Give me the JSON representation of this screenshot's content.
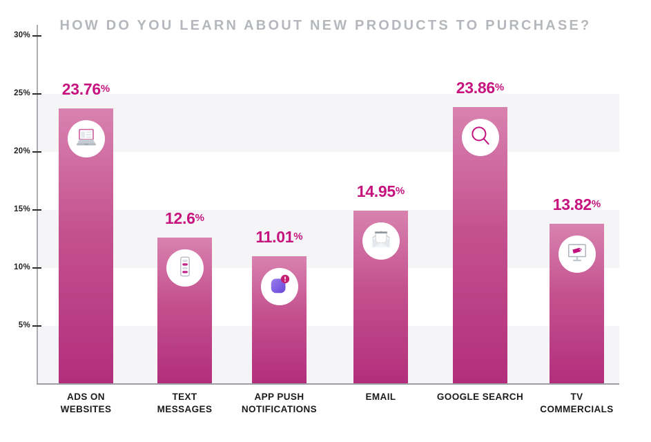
{
  "title": "HOW DO YOU LEARN ABOUT NEW PRODUCTS TO PURCHASE?",
  "colors": {
    "accent_magenta": "#c6137e",
    "bar_gradient_top": "#d882af",
    "bar_gradient_bottom": "#b22e7c",
    "grid_band": "#f5f5f8",
    "axis_line": "#9b9fa4",
    "title_text": "#b4b8bc",
    "category_text": "#1b1b1b",
    "app_badge": "#c51f72",
    "app_square_purple": "#7a57e0"
  },
  "chart_data": {
    "type": "bar",
    "title": "HOW DO YOU LEARN ABOUT NEW PRODUCTS TO PURCHASE?",
    "categories": [
      "ADS ON WEBSITES",
      "TEXT MESSAGES",
      "APP PUSH NOTIFICATIONS",
      "EMAIL",
      "GOOGLE SEARCH",
      "TV COMMERCIALS"
    ],
    "category_lines": [
      [
        "ADS ON",
        "WEBSITES"
      ],
      [
        "TEXT",
        "MESSAGES"
      ],
      [
        "APP PUSH",
        "NOTIFICATIONS"
      ],
      [
        "EMAIL"
      ],
      [
        "GOOGLE SEARCH"
      ],
      [
        "TV",
        "COMMERCIALS"
      ]
    ],
    "values": [
      23.76,
      12.6,
      11.01,
      14.95,
      23.86,
      13.82
    ],
    "value_labels": [
      "23.76",
      "12.6",
      "11.01",
      "14.95",
      "23.86",
      "13.82"
    ],
    "unit": "%",
    "icons": [
      "laptop-icon",
      "sms-phone-icon",
      "app-push-notification-icon",
      "email-icon",
      "search-icon",
      "tv-icon"
    ],
    "y_axis": {
      "tick_labels": [
        "30%",
        "25%",
        "20%",
        "15%",
        "10%",
        "5%"
      ],
      "tick_values": [
        30,
        25,
        20,
        15,
        10,
        5
      ],
      "min": 0,
      "max": 30
    },
    "bands": [
      [
        20,
        25
      ],
      [
        10,
        15
      ],
      [
        0,
        5
      ]
    ],
    "grid": "alternating-horizontal-bands",
    "legend": "none",
    "xlabel": "",
    "ylabel": ""
  }
}
